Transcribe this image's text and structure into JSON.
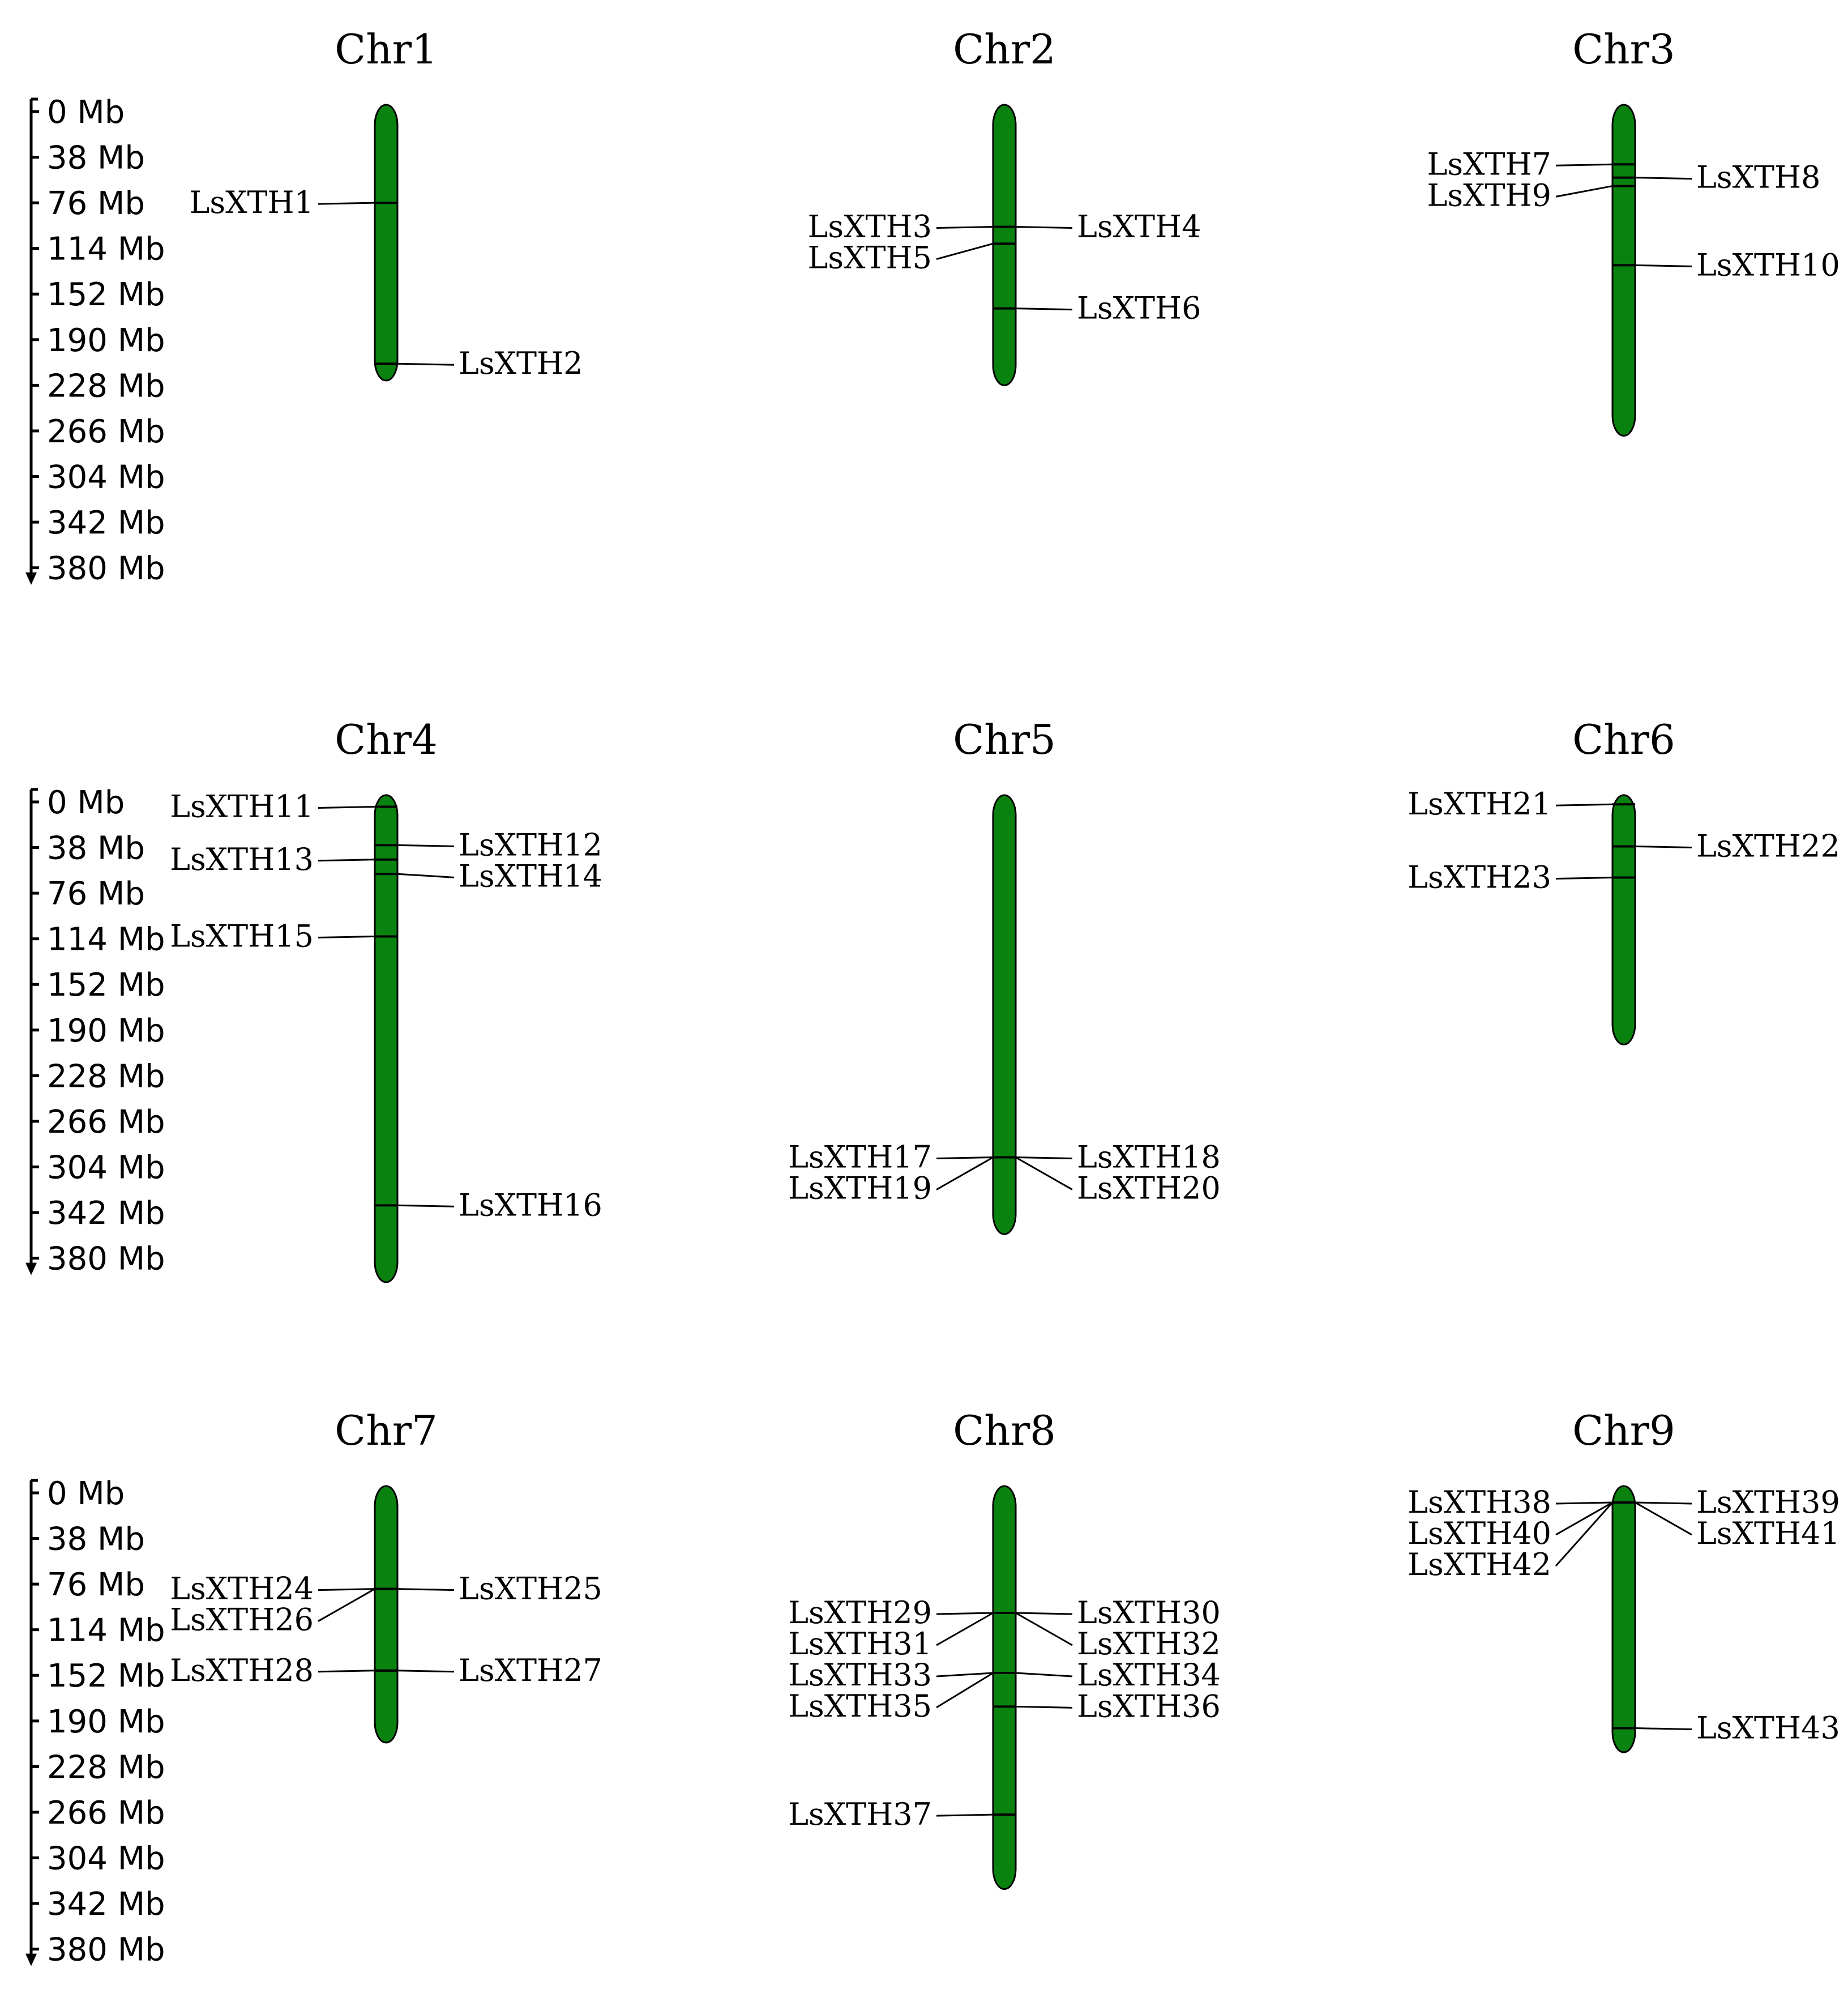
{
  "colors": {
    "chromosome": "#0a8210",
    "line": "#000000",
    "background": "#ffffff"
  },
  "scale": {
    "unit": "Mb",
    "ticks": [
      "0 Mb",
      "38 Mb",
      "76 Mb",
      "114 Mb",
      "152 Mb",
      "190 Mb",
      "228 Mb",
      "266 Mb",
      "304 Mb",
      "342 Mb",
      "380 Mb"
    ],
    "tick_values": [
      0,
      38,
      76,
      114,
      152,
      190,
      228,
      266,
      304,
      342,
      380
    ]
  },
  "chromosomes": [
    {
      "name": "Chr1",
      "length": 224,
      "genes": [
        {
          "name": "LsXTH1",
          "pos": 76,
          "side": "left"
        },
        {
          "name": "LsXTH2",
          "pos": 210,
          "side": "right"
        }
      ]
    },
    {
      "name": "Chr2",
      "length": 228,
      "genes": [
        {
          "name": "LsXTH3",
          "pos": 96,
          "side": "left"
        },
        {
          "name": "LsXTH4",
          "pos": 96,
          "side": "right"
        },
        {
          "name": "LsXTH5",
          "pos": 110,
          "side": "left"
        },
        {
          "name": "LsXTH6",
          "pos": 164,
          "side": "right"
        }
      ]
    },
    {
      "name": "Chr3",
      "length": 270,
      "genes": [
        {
          "name": "LsXTH7",
          "pos": 44,
          "side": "left"
        },
        {
          "name": "LsXTH8",
          "pos": 55,
          "side": "right"
        },
        {
          "name": "LsXTH9",
          "pos": 62,
          "side": "left"
        },
        {
          "name": "LsXTH10",
          "pos": 128,
          "side": "right"
        }
      ]
    },
    {
      "name": "Chr4",
      "length": 400,
      "genes": [
        {
          "name": "LsXTH11",
          "pos": 4,
          "side": "left"
        },
        {
          "name": "LsXTH12",
          "pos": 36,
          "side": "right"
        },
        {
          "name": "LsXTH13",
          "pos": 48,
          "side": "left"
        },
        {
          "name": "LsXTH14",
          "pos": 60,
          "side": "right"
        },
        {
          "name": "LsXTH15",
          "pos": 112,
          "side": "left"
        },
        {
          "name": "LsXTH16",
          "pos": 336,
          "side": "right"
        }
      ]
    },
    {
      "name": "Chr5",
      "length": 360,
      "genes": [
        {
          "name": "LsXTH17",
          "pos": 296,
          "side": "left"
        },
        {
          "name": "LsXTH18",
          "pos": 296,
          "side": "right"
        },
        {
          "name": "LsXTH19",
          "pos": 296,
          "side": "left"
        },
        {
          "name": "LsXTH20",
          "pos": 296,
          "side": "right"
        }
      ]
    },
    {
      "name": "Chr6",
      "length": 202,
      "genes": [
        {
          "name": "LsXTH21",
          "pos": 2,
          "side": "left"
        },
        {
          "name": "LsXTH22",
          "pos": 37,
          "side": "right"
        },
        {
          "name": "LsXTH23",
          "pos": 63,
          "side": "left"
        }
      ]
    },
    {
      "name": "Chr7",
      "length": 208,
      "genes": [
        {
          "name": "LsXTH24",
          "pos": 80,
          "side": "left"
        },
        {
          "name": "LsXTH25",
          "pos": 80,
          "side": "right"
        },
        {
          "name": "LsXTH26",
          "pos": 80,
          "side": "left"
        },
        {
          "name": "LsXTH27",
          "pos": 148,
          "side": "right"
        },
        {
          "name": "LsXTH28",
          "pos": 148,
          "side": "left"
        }
      ]
    },
    {
      "name": "Chr8",
      "length": 330,
      "genes": [
        {
          "name": "LsXTH29",
          "pos": 100,
          "side": "left"
        },
        {
          "name": "LsXTH30",
          "pos": 100,
          "side": "right"
        },
        {
          "name": "LsXTH31",
          "pos": 100,
          "side": "left"
        },
        {
          "name": "LsXTH32",
          "pos": 100,
          "side": "right"
        },
        {
          "name": "LsXTH33",
          "pos": 150,
          "side": "left"
        },
        {
          "name": "LsXTH34",
          "pos": 150,
          "side": "right"
        },
        {
          "name": "LsXTH35",
          "pos": 150,
          "side": "left"
        },
        {
          "name": "LsXTH36",
          "pos": 178,
          "side": "right"
        },
        {
          "name": "LsXTH37",
          "pos": 268,
          "side": "left"
        }
      ]
    },
    {
      "name": "Chr9",
      "length": 216,
      "genes": [
        {
          "name": "LsXTH38",
          "pos": 8,
          "side": "left"
        },
        {
          "name": "LsXTH39",
          "pos": 8,
          "side": "right"
        },
        {
          "name": "LsXTH40",
          "pos": 8,
          "side": "left"
        },
        {
          "name": "LsXTH41",
          "pos": 8,
          "side": "right"
        },
        {
          "name": "LsXTH42",
          "pos": 8,
          "side": "left"
        },
        {
          "name": "LsXTH43",
          "pos": 196,
          "side": "right"
        }
      ]
    }
  ]
}
